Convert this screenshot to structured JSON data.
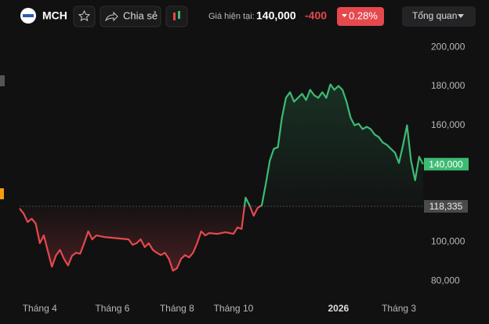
{
  "header": {
    "symbol": "MCH",
    "share": "Chia sẻ",
    "price_caption": "Giá hiện tại:",
    "price": "140,000",
    "change": "-400",
    "change_pct": "0.28%",
    "view": "Tổng quan"
  },
  "chart_data": {
    "type": "line",
    "values": [
      117200,
      114700,
      110300,
      112000,
      109500,
      99400,
      103400,
      95300,
      87300,
      93000,
      96000,
      91300,
      88000,
      93000,
      94500,
      94000,
      99400,
      105500,
      101400,
      103400,
      103000,
      102600,
      102400,
      102200,
      102000,
      101800,
      101600,
      101400,
      98600,
      99400,
      101400,
      97400,
      99400,
      96000,
      94500,
      93300,
      94500,
      91300,
      85300,
      86500,
      91300,
      93300,
      92100,
      94500,
      99400,
      105500,
      103400,
      104600,
      104400,
      104200,
      104600,
      105000,
      104600,
      104200,
      107500,
      106700,
      122800,
      118800,
      113500,
      117600,
      118800,
      129700,
      141800,
      147900,
      148700,
      164000,
      174100,
      177000,
      172100,
      174100,
      176200,
      172900,
      178200,
      175400,
      174100,
      177000,
      174100,
      181000,
      178200,
      180200,
      178200,
      172100,
      164000,
      160000,
      160800,
      158000,
      159200,
      158000,
      155200,
      153900,
      151100,
      149900,
      147900,
      145900,
      140600,
      149900,
      160000,
      141800,
      131700,
      143800,
      140000
    ],
    "xticks": [
      {
        "value": 5,
        "label": "Tháng 4"
      },
      {
        "value": 23,
        "label": "Tháng 6"
      },
      {
        "value": 39,
        "label": "Tháng 8"
      },
      {
        "value": 53,
        "label": "Tháng 10"
      },
      {
        "value": 79,
        "label": "2026"
      },
      {
        "value": 94,
        "label": "Tháng 3"
      }
    ],
    "ylim": [
      72000,
      205000
    ],
    "yticks": [
      {
        "value": 80000,
        "label": "80,000"
      },
      {
        "value": 100000,
        "label": "100,000"
      },
      {
        "value": 140000,
        "label": "140,000"
      },
      {
        "value": 160000,
        "label": "160,000"
      },
      {
        "value": 180000,
        "label": "180,000"
      },
      {
        "value": 200000,
        "label": "200,000"
      }
    ],
    "reference": {
      "value": 118335,
      "label": "118,335"
    },
    "last": {
      "value": 140000,
      "label": "140,000"
    },
    "up_color": "#3dbb73",
    "down_color": "#e5484d"
  }
}
